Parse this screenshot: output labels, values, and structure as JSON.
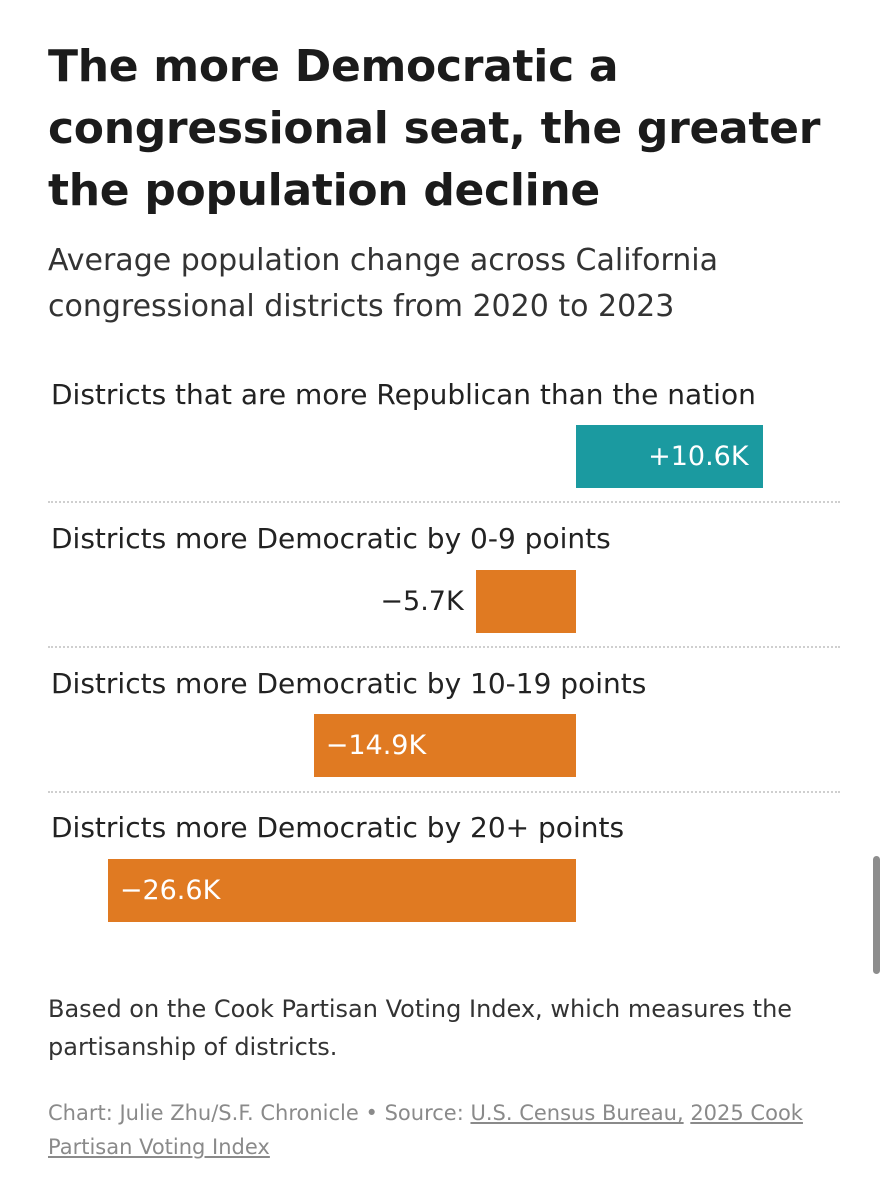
{
  "title": "The more Democratic a congressional seat, the greater the population decline",
  "subtitle": "Average population change across California congressional districts from 2020 to 2023",
  "chart_data": {
    "type": "bar",
    "orientation": "horizontal",
    "categories": [
      "Districts that are more Republican than the nation",
      "Districts more Democratic by 0-9 points",
      "Districts more Democratic by 10-19 points",
      "Districts more Democratic by 20+ points"
    ],
    "values": [
      10.6,
      -5.7,
      -14.9,
      -26.6
    ],
    "value_labels": [
      "+10.6K",
      "−5.7K",
      "−14.9K",
      "−26.6K"
    ],
    "unit": "thousands of people",
    "xlim": [
      -27.5,
      11.0
    ],
    "colors": {
      "positive": "#1b9aa0",
      "negative": "#e07a22"
    }
  },
  "footnote": "Based on the Cook Partisan Voting Index, which measures the partisanship of districts.",
  "credit": {
    "chart_by": "Chart: Julie Zhu/S.F. Chronicle",
    "separator": "•",
    "source_prefix": "Source:",
    "source_1": "U.S. Census Bureau,",
    "source_2": "2025 Cook Partisan Voting Index"
  }
}
